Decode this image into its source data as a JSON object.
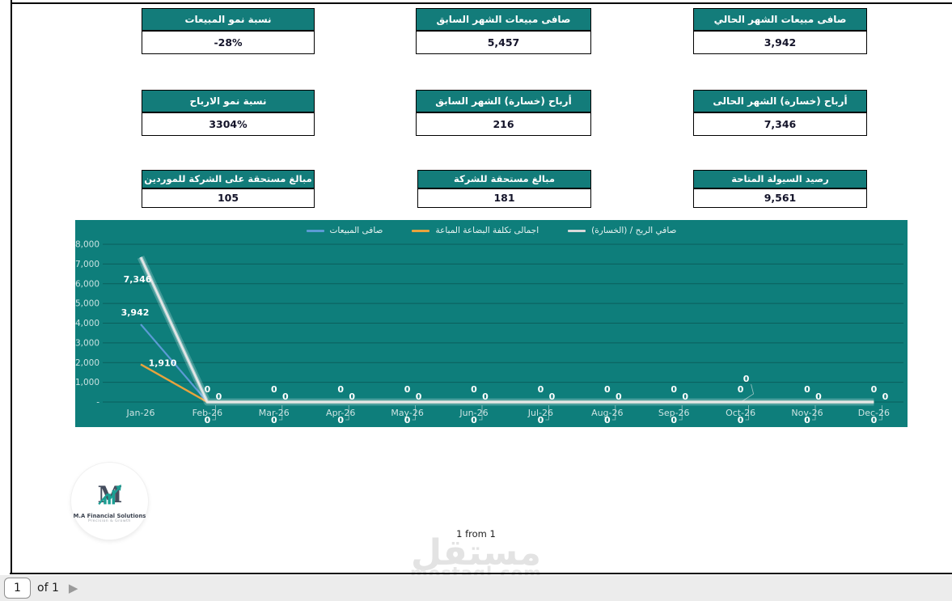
{
  "cards": [
    {
      "title": "نسبة نمو المبيعات",
      "value": "-28%"
    },
    {
      "title": "صافى مبيعات الشهر السابق",
      "value": "5,457"
    },
    {
      "title": "صافى مبيعات الشهر الحالي",
      "value": "3,942"
    },
    {
      "title": "نسبة نمو الارباح",
      "value": "3304%"
    },
    {
      "title": "أرباح (خسارة) الشهر السابق",
      "value": "216"
    },
    {
      "title": "أرباح (خسارة) الشهر الحالى",
      "value": "7,346"
    },
    {
      "title": "مبالغ مستحقة على الشركة للموردين",
      "value": "105"
    },
    {
      "title": "مبالغ مستحقة للشركة",
      "value": "181"
    },
    {
      "title": "رصيد السيولة المتاحة",
      "value": "9,561"
    }
  ],
  "chart_data": {
    "type": "line",
    "categories": [
      "Jan-26",
      "Feb-26",
      "Mar-26",
      "Apr-26",
      "May-26",
      "Jun-26",
      "Jul-26",
      "Aug-26",
      "Sep-26",
      "Oct-26",
      "Nov-26",
      "Dec-26"
    ],
    "series": [
      {
        "name": "صافى المبيعات",
        "color": "#5b9bd5",
        "values": [
          3942,
          0,
          0,
          0,
          0,
          0,
          0,
          0,
          0,
          0,
          0,
          0
        ]
      },
      {
        "name": "اجمالى تكلفة البضاعة المباعة",
        "color": "#e8a33d",
        "values": [
          1910,
          0,
          0,
          0,
          0,
          0,
          0,
          0,
          0,
          0,
          0,
          0
        ]
      },
      {
        "name": "صافي الربح / (الخسارة)",
        "color": "#d9d9d9",
        "values": [
          7346,
          0,
          0,
          0,
          0,
          0,
          0,
          0,
          0,
          0,
          0,
          0
        ]
      }
    ],
    "ylim": [
      0,
      8000
    ],
    "ytick_step": 1000,
    "ytick_labels": [
      "-",
      "1,000",
      "2,000",
      "3,000",
      "4,000",
      "5,000",
      "6,000",
      "7,000",
      "8,000"
    ],
    "background": "#0e7e7b",
    "grid": true,
    "legend_position": "top-center"
  },
  "logo": {
    "monogram": "M",
    "name": "M.A Financial Solutions",
    "tagline": "Precision & Growth"
  },
  "footer": {
    "page_label": "1 from 1"
  },
  "watermark": {
    "arabic": "مستقل",
    "latin": "mostaql.com"
  },
  "pagination": {
    "page": "1",
    "of_label": "of 1",
    "next_icon": "▶"
  },
  "colors": {
    "teal_header": "#137c7a",
    "chart_background": "#0e7e7b",
    "value_text": "#14142a"
  }
}
